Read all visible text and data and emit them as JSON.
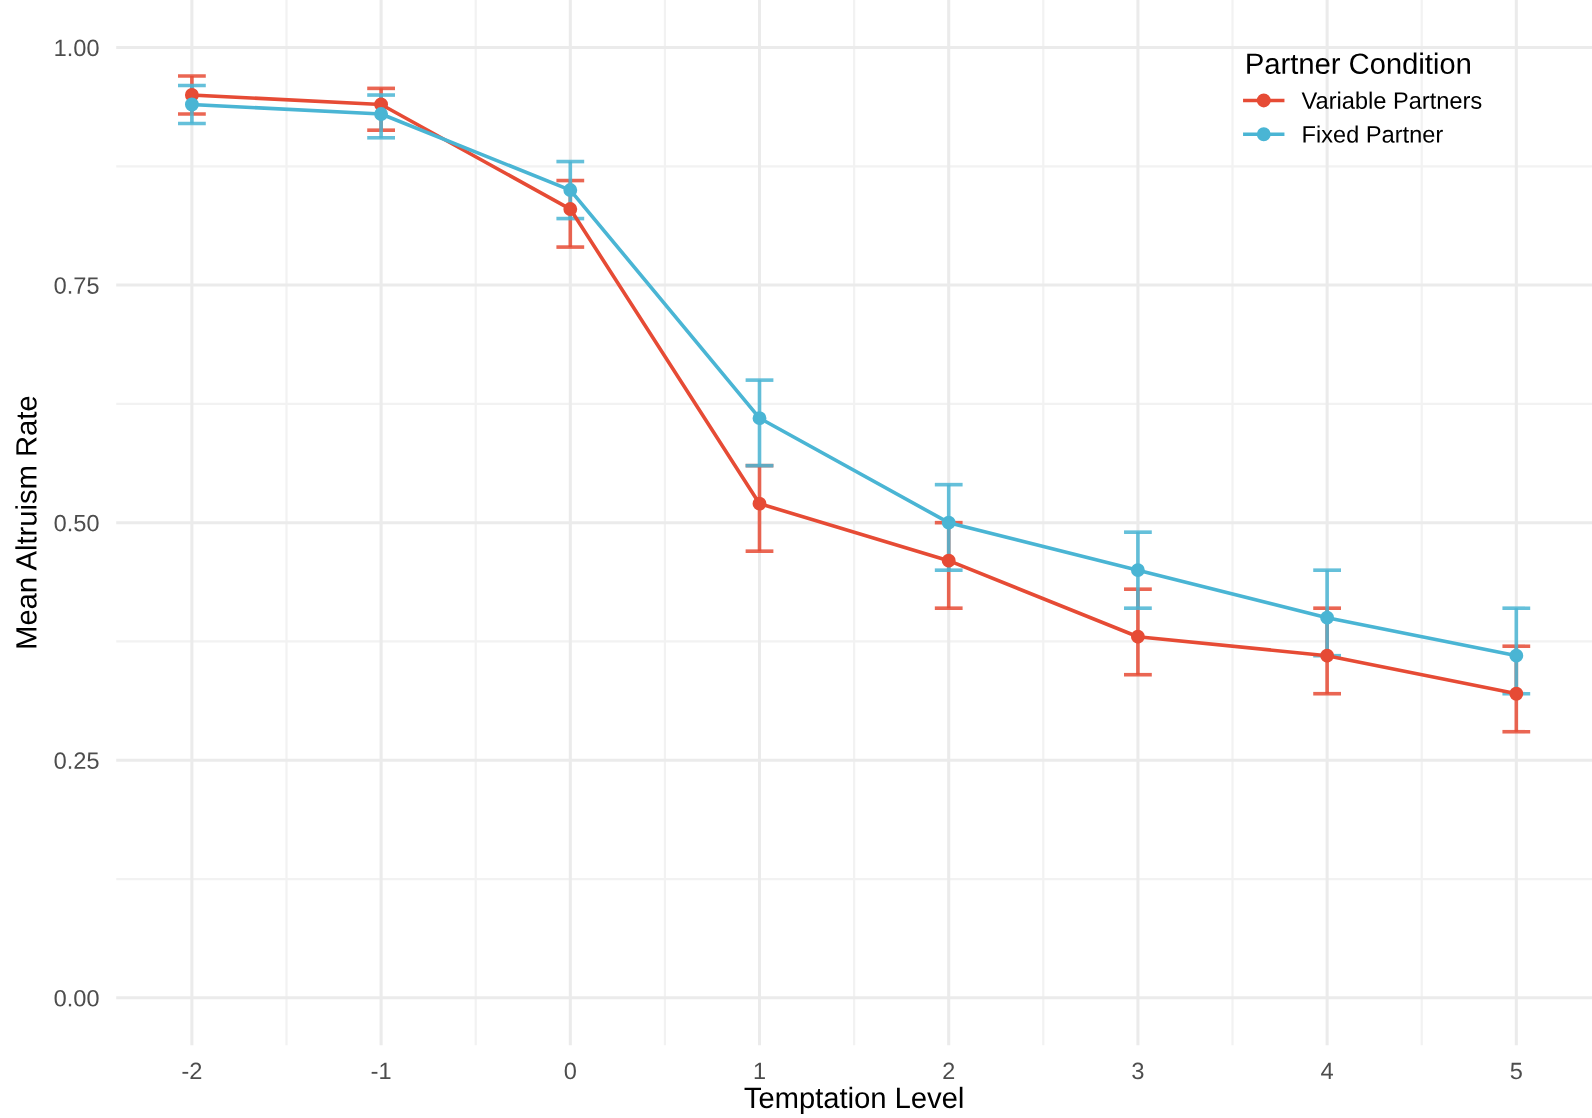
{
  "chart_data": {
    "type": "line",
    "xlabel": "Temptation Level",
    "ylabel": "Mean Altruism Rate",
    "legend_title": "Partner Condition",
    "x": [
      -2,
      -1,
      0,
      1,
      2,
      3,
      4,
      5
    ],
    "series": [
      {
        "name": "Variable Partners",
        "color": "#e64b35",
        "values": [
          0.95,
          0.94,
          0.83,
          0.52,
          0.46,
          0.38,
          0.36,
          0.32
        ],
        "errors": [
          [
            0.93,
            0.97
          ],
          [
            0.913,
            0.957
          ],
          [
            0.79,
            0.86
          ],
          [
            0.47,
            0.56
          ],
          [
            0.41,
            0.5
          ],
          [
            0.34,
            0.43
          ],
          [
            0.32,
            0.41
          ],
          [
            0.28,
            0.37
          ]
        ]
      },
      {
        "name": "Fixed Partner",
        "color": "#4ab5d4",
        "values": [
          0.94,
          0.93,
          0.85,
          0.61,
          0.5,
          0.45,
          0.4,
          0.36
        ],
        "errors": [
          [
            0.92,
            0.96
          ],
          [
            0.905,
            0.95
          ],
          [
            0.82,
            0.88
          ],
          [
            0.56,
            0.65
          ],
          [
            0.45,
            0.54
          ],
          [
            0.41,
            0.49
          ],
          [
            0.36,
            0.45
          ],
          [
            0.32,
            0.41
          ]
        ]
      }
    ],
    "xlim": [
      -2.4,
      5.4
    ],
    "ylim": [
      -0.05,
      1.05
    ],
    "xticks": [
      -2,
      -1,
      0,
      1,
      2,
      3,
      4,
      5
    ],
    "yticks": [
      {
        "value": 0,
        "label": "0.00"
      },
      {
        "value": 0.25,
        "label": "0.25"
      },
      {
        "value": 0.5,
        "label": "0.50"
      },
      {
        "value": 0.75,
        "label": "0.75"
      },
      {
        "value": 1,
        "label": "1.00"
      }
    ],
    "grid": true,
    "legend": "top right",
    "marker": "circle",
    "line_style": "solid"
  }
}
